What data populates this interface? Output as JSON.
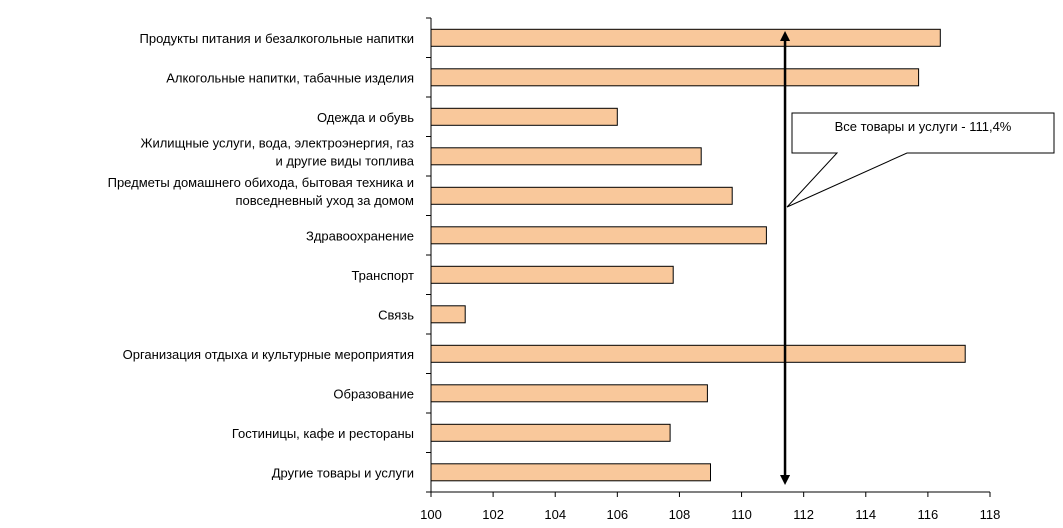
{
  "chart_data": {
    "type": "bar",
    "orientation": "horizontal",
    "categories": [
      [
        "Продукты питания и безалкогольные напитки"
      ],
      [
        "Алкогольные напитки, табачные изделия"
      ],
      [
        "Одежда и обувь"
      ],
      [
        "Жилищные услуги, вода, электроэнергия, газ",
        "и другие виды топлива"
      ],
      [
        "Предметы домашнего обихода, бытовая техника и",
        "повседневный уход за домом"
      ],
      [
        "Здравоохранение"
      ],
      [
        "Транспорт"
      ],
      [
        "Связь"
      ],
      [
        "Организация отдыха и культурные мероприятия"
      ],
      [
        "Образование"
      ],
      [
        "Гостиницы, кафе и рестораны"
      ],
      [
        "Другие товары и услуги"
      ]
    ],
    "values": [
      116.4,
      115.7,
      106.0,
      108.7,
      109.7,
      110.8,
      107.8,
      101.1,
      117.2,
      108.9,
      107.7,
      109.0
    ],
    "xlim": [
      100,
      118
    ],
    "xticks": [
      "100",
      "102",
      "104",
      "106",
      "108",
      "110",
      "112",
      "114",
      "116",
      "118"
    ],
    "bar_color": "#f9c89b",
    "bar_edge": "#000000",
    "reference_value": 111.4,
    "reference_label": "Все товары и услуги - 111,4%",
    "grid": false,
    "legend": "none"
  }
}
